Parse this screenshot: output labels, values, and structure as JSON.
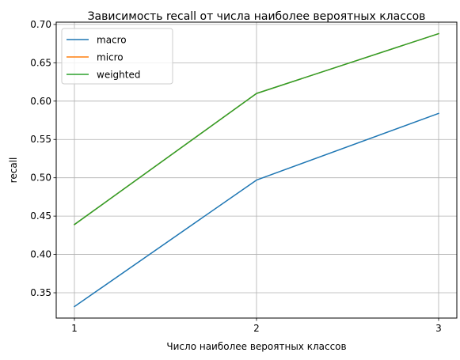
{
  "chart_data": {
    "type": "line",
    "title": "Зависимость recall от числа наиболее вероятных классов",
    "xlabel": "Число наиболее вероятных классов",
    "ylabel": "recall",
    "x": [
      1,
      2,
      3
    ],
    "xticks": [
      "1",
      "2",
      "3"
    ],
    "yticks": [
      "0.35",
      "0.40",
      "0.45",
      "0.50",
      "0.55",
      "0.60",
      "0.65",
      "0.70"
    ],
    "ylim": [
      0.317,
      0.703
    ],
    "grid": true,
    "legend_position": "upper-left",
    "series": [
      {
        "name": "macro",
        "color": "#1f77b4",
        "values": [
          0.332,
          0.497,
          0.584
        ]
      },
      {
        "name": "micro",
        "color": "#ff7f0e",
        "values": [
          0.439,
          0.61,
          0.688
        ]
      },
      {
        "name": "weighted",
        "color": "#2ca02c",
        "values": [
          0.439,
          0.61,
          0.688
        ]
      }
    ]
  }
}
